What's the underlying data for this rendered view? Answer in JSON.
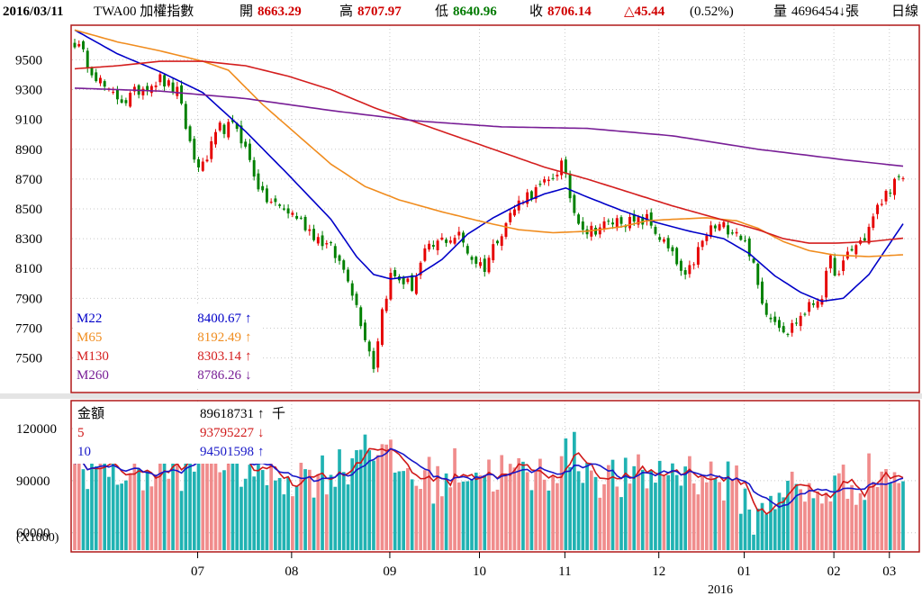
{
  "header": {
    "date": "2016/03/11",
    "symbol": "TWA00 加權指數",
    "open_label": "開",
    "open": "8663.29",
    "high_label": "高",
    "high": "8707.97",
    "low_label": "低",
    "low": "8640.96",
    "close_label": "收",
    "close": "8706.14",
    "change": "△45.44",
    "change_pct": "(0.52%)",
    "volume_label": "量",
    "volume": "4696454↓張",
    "period": "日線"
  },
  "colors": {
    "up": "#e60000",
    "down": "#008000",
    "m22": "#0000c8",
    "m65": "#f08c1e",
    "m130": "#d41e1e",
    "m260": "#781e96",
    "vol_up": "#f08c8c",
    "vol_down": "#20b2b2",
    "vol_ma5": "#d01818",
    "vol_ma10": "#1818c8",
    "frame": "#b01818"
  },
  "chart_data": [
    {
      "type": "candlestick",
      "title": "",
      "ylim": [
        7280,
        9720
      ],
      "yticks": [
        "9500",
        "9300",
        "9100",
        "8900",
        "8700",
        "8500",
        "8300",
        "8100",
        "7900",
        "7700",
        "7500"
      ],
      "x_tick_labels": [
        "07",
        "08",
        "09",
        "10",
        "11",
        "12",
        "01",
        "02",
        "03"
      ],
      "year_label": "2016",
      "legend": [
        {
          "name": "M22",
          "value": "8400.67",
          "arrow": "↑"
        },
        {
          "name": "M65",
          "value": "8192.49",
          "arrow": "↑"
        },
        {
          "name": "M130",
          "value": "8303.14",
          "arrow": "↑"
        },
        {
          "name": "M260",
          "value": "8786.26",
          "arrow": "↓"
        }
      ],
      "close_anchors": [
        [
          0,
          9620
        ],
        [
          4,
          9440
        ],
        [
          8,
          9270
        ],
        [
          12,
          9230
        ],
        [
          16,
          9320
        ],
        [
          20,
          9370
        ],
        [
          24,
          9280
        ],
        [
          28,
          8830
        ],
        [
          30,
          8780
        ],
        [
          34,
          9040
        ],
        [
          38,
          9050
        ],
        [
          40,
          8900
        ],
        [
          44,
          8580
        ],
        [
          48,
          8510
        ],
        [
          52,
          8450
        ],
        [
          56,
          8330
        ],
        [
          60,
          8230
        ],
        [
          64,
          8050
        ],
        [
          68,
          7650
        ],
        [
          70,
          7450
        ],
        [
          72,
          7820
        ],
        [
          74,
          8050
        ],
        [
          76,
          8030
        ],
        [
          79,
          7980
        ],
        [
          82,
          8200
        ],
        [
          86,
          8290
        ],
        [
          90,
          8320
        ],
        [
          93,
          8170
        ],
        [
          96,
          8110
        ],
        [
          99,
          8310
        ],
        [
          102,
          8460
        ],
        [
          105,
          8580
        ],
        [
          108,
          8620
        ],
        [
          111,
          8680
        ],
        [
          114,
          8800
        ],
        [
          117,
          8480
        ],
        [
          120,
          8350
        ],
        [
          124,
          8390
        ],
        [
          128,
          8430
        ],
        [
          131,
          8400
        ],
        [
          134,
          8430
        ],
        [
          137,
          8310
        ],
        [
          140,
          8180
        ],
        [
          143,
          8020
        ],
        [
          146,
          8220
        ],
        [
          149,
          8370
        ],
        [
          152,
          8380
        ],
        [
          155,
          8360
        ],
        [
          158,
          8220
        ],
        [
          161,
          7860
        ],
        [
          164,
          7760
        ],
        [
          167,
          7680
        ],
        [
          170,
          7780
        ],
        [
          173,
          7870
        ],
        [
          175,
          7930
        ],
        [
          177,
          8150
        ],
        [
          179,
          8040
        ],
        [
          181,
          8200
        ],
        [
          185,
          8310
        ],
        [
          188,
          8500
        ],
        [
          191,
          8650
        ],
        [
          194,
          8706
        ]
      ],
      "series": [
        {
          "name": "M22",
          "anchors": [
            [
              0,
              9700
            ],
            [
              10,
              9540
            ],
            [
              20,
              9420
            ],
            [
              30,
              9280
            ],
            [
              40,
              9020
            ],
            [
              50,
              8730
            ],
            [
              60,
              8430
            ],
            [
              66,
              8180
            ],
            [
              70,
              8060
            ],
            [
              74,
              8030
            ],
            [
              80,
              8050
            ],
            [
              86,
              8160
            ],
            [
              92,
              8330
            ],
            [
              98,
              8440
            ],
            [
              104,
              8530
            ],
            [
              110,
              8600
            ],
            [
              115,
              8640
            ],
            [
              120,
              8580
            ],
            [
              128,
              8490
            ],
            [
              136,
              8410
            ],
            [
              144,
              8350
            ],
            [
              152,
              8300
            ],
            [
              158,
              8200
            ],
            [
              164,
              8050
            ],
            [
              170,
              7940
            ],
            [
              175,
              7880
            ],
            [
              180,
              7900
            ],
            [
              186,
              8060
            ],
            [
              190,
              8230
            ],
            [
              194,
              8400
            ]
          ]
        },
        {
          "name": "M65",
          "anchors": [
            [
              0,
              9700
            ],
            [
              10,
              9620
            ],
            [
              20,
              9560
            ],
            [
              30,
              9490
            ],
            [
              36,
              9430
            ],
            [
              44,
              9200
            ],
            [
              52,
              9000
            ],
            [
              60,
              8800
            ],
            [
              68,
              8650
            ],
            [
              76,
              8560
            ],
            [
              86,
              8480
            ],
            [
              96,
              8410
            ],
            [
              104,
              8360
            ],
            [
              112,
              8340
            ],
            [
              120,
              8350
            ],
            [
              128,
              8380
            ],
            [
              134,
              8420
            ],
            [
              140,
              8430
            ],
            [
              148,
              8440
            ],
            [
              155,
              8420
            ],
            [
              160,
              8370
            ],
            [
              166,
              8280
            ],
            [
              172,
              8220
            ],
            [
              178,
              8190
            ],
            [
              186,
              8180
            ],
            [
              194,
              8192
            ]
          ]
        },
        {
          "name": "M130",
          "anchors": [
            [
              0,
              9440
            ],
            [
              10,
              9460
            ],
            [
              20,
              9490
            ],
            [
              30,
              9490
            ],
            [
              40,
              9460
            ],
            [
              50,
              9390
            ],
            [
              60,
              9300
            ],
            [
              70,
              9180
            ],
            [
              80,
              9080
            ],
            [
              90,
              8980
            ],
            [
              100,
              8880
            ],
            [
              110,
              8780
            ],
            [
              120,
              8700
            ],
            [
              130,
              8610
            ],
            [
              140,
              8520
            ],
            [
              150,
              8440
            ],
            [
              160,
              8360
            ],
            [
              166,
              8300
            ],
            [
              172,
              8270
            ],
            [
              178,
              8270
            ],
            [
              186,
              8280
            ],
            [
              194,
              8303
            ]
          ]
        },
        {
          "name": "M260",
          "anchors": [
            [
              0,
              9310
            ],
            [
              20,
              9290
            ],
            [
              40,
              9240
            ],
            [
              60,
              9160
            ],
            [
              80,
              9090
            ],
            [
              100,
              9050
            ],
            [
              120,
              9040
            ],
            [
              140,
              8990
            ],
            [
              160,
              8900
            ],
            [
              180,
              8830
            ],
            [
              194,
              8786
            ]
          ]
        }
      ]
    },
    {
      "type": "bar",
      "title": "",
      "ylim": [
        50000,
        135000
      ],
      "yticks": [
        "120000",
        "90000",
        "60000"
      ],
      "y_unit": "(X1000)",
      "legend": [
        {
          "name": "金額",
          "value": "89618731",
          "arrow": "↑",
          "unit": "千"
        },
        {
          "name": "5",
          "value": "93795227",
          "arrow": "↓",
          "unit": ""
        },
        {
          "name": "10",
          "value": "94501598",
          "arrow": "↑",
          "unit": ""
        }
      ],
      "volume_anchors": [
        [
          0,
          100000
        ],
        [
          10,
          96000
        ],
        [
          20,
          94000
        ],
        [
          28,
          100000
        ],
        [
          30,
          108000
        ],
        [
          36,
          101000
        ],
        [
          44,
          95000
        ],
        [
          52,
          93000
        ],
        [
          60,
          95000
        ],
        [
          64,
          100000
        ],
        [
          66,
          107000
        ],
        [
          68,
          117000
        ],
        [
          70,
          112000
        ],
        [
          72,
          103000
        ],
        [
          76,
          97000
        ],
        [
          80,
          92000
        ],
        [
          86,
          90000
        ],
        [
          90,
          98000
        ],
        [
          96,
          95000
        ],
        [
          102,
          94000
        ],
        [
          108,
          92000
        ],
        [
          114,
          101000
        ],
        [
          116,
          107000
        ],
        [
          118,
          102000
        ],
        [
          124,
          92000
        ],
        [
          130,
          90000
        ],
        [
          134,
          93000
        ],
        [
          140,
          97000
        ],
        [
          146,
          95000
        ],
        [
          152,
          90000
        ],
        [
          156,
          84000
        ],
        [
          158,
          73000
        ],
        [
          160,
          66000
        ],
        [
          162,
          78000
        ],
        [
          166,
          88000
        ],
        [
          168,
          85000
        ],
        [
          172,
          80000
        ],
        [
          174,
          82000
        ],
        [
          178,
          88000
        ],
        [
          182,
          88000
        ],
        [
          188,
          95000
        ],
        [
          194,
          93000
        ]
      ]
    }
  ]
}
